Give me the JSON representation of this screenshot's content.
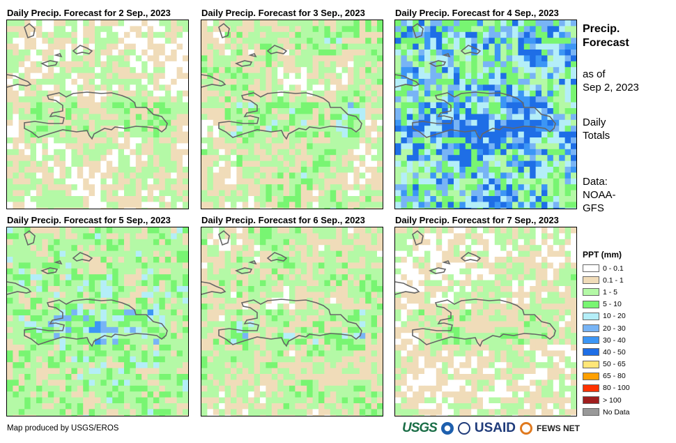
{
  "panels": [
    {
      "title": "Daily Precip. Forecast for 2 Sep., 2023"
    },
    {
      "title": "Daily Precip. Forecast for 3 Sep., 2023"
    },
    {
      "title": "Daily Precip. Forecast for 4 Sep., 2023"
    },
    {
      "title": "Daily Precip. Forecast for 5 Sep., 2023"
    },
    {
      "title": "Daily Precip. Forecast for 6 Sep., 2023"
    },
    {
      "title": "Daily Precip. Forecast for 7 Sep., 2023"
    }
  ],
  "side": {
    "title_line1": "Precip.",
    "title_line2": "Forecast",
    "asof_line1": "as of",
    "asof_line2": "Sep 2, 2023",
    "totals_line1": "Daily",
    "totals_line2": "Totals",
    "data_line1": "Data:",
    "data_line2": "NOAA-",
    "data_line3": "GFS"
  },
  "legend": {
    "title": "PPT (mm)",
    "items": [
      {
        "label": "0 - 0.1",
        "color": "#ffffff"
      },
      {
        "label": "0.1 - 1",
        "color": "#f0dcb9"
      },
      {
        "label": "1 - 5",
        "color": "#b4f9a6"
      },
      {
        "label": "5 - 10",
        "color": "#78f572"
      },
      {
        "label": "10 - 20",
        "color": "#b4eef8"
      },
      {
        "label": "20 - 30",
        "color": "#78b4f5"
      },
      {
        "label": "30 - 40",
        "color": "#3c96f5"
      },
      {
        "label": "40 - 50",
        "color": "#1e6ee6"
      },
      {
        "label": "50 - 65",
        "color": "#ffe678"
      },
      {
        "label": "65 - 80",
        "color": "#ffa000"
      },
      {
        "label": "80 - 100",
        "color": "#ff3200"
      },
      {
        "label": "> 100",
        "color": "#a01e1e"
      },
      {
        "label": "No Data",
        "color": "#999999"
      }
    ]
  },
  "credit": "Map produced by USGS/EROS",
  "logos": {
    "usgs": "USGS",
    "usaid": "USAID",
    "fews": "FEWS NET"
  }
}
